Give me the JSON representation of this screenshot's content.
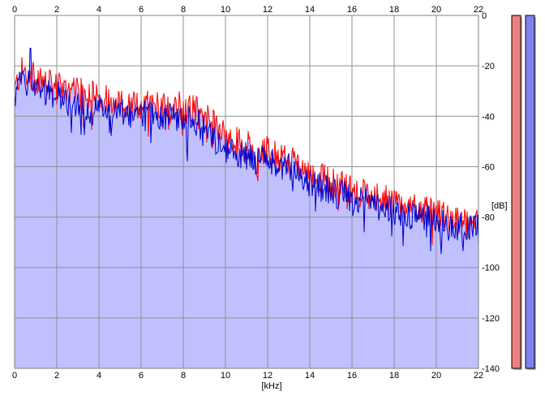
{
  "chart_data": {
    "type": "area",
    "xlabel": "[kHz]",
    "ylabel": "[dB]",
    "xlim": [
      0,
      22
    ],
    "ylim": [
      -140,
      0
    ],
    "x_ticks": [
      0,
      2,
      4,
      6,
      8,
      10,
      12,
      14,
      16,
      18,
      20,
      22
    ],
    "x_tick_labels": [
      "0",
      "2",
      "4",
      "6",
      "8",
      "10",
      "12",
      "14",
      "16",
      "18",
      "20",
      "22"
    ],
    "y_ticks": [
      0,
      -20,
      -40,
      -60,
      -80,
      -100,
      -120,
      -140
    ],
    "y_tick_labels": [
      "0",
      "-20",
      "-40",
      "-60",
      "-80",
      "-100",
      "-120",
      "-140"
    ],
    "grid": true,
    "colors": {
      "red": "#ff0000",
      "blue": "#0000cc",
      "fill": "#c0c0ff",
      "meter_red": "#f08080",
      "meter_blue": "#8080f0"
    },
    "envelope": {
      "x": [
        0,
        0.3,
        0.8,
        1.5,
        2.5,
        3.5,
        4.5,
        5.5,
        6.5,
        7.5,
        8.5,
        9.5,
        10,
        11,
        12,
        13,
        14,
        15,
        16,
        17,
        18,
        19,
        20,
        21,
        22
      ],
      "red": [
        -30,
        -22,
        -24,
        -27,
        -30,
        -31,
        -33,
        -36,
        -35,
        -35,
        -37,
        -43,
        -48,
        -51,
        -54,
        -57,
        -63,
        -66,
        -69,
        -72,
        -74,
        -77,
        -78,
        -82,
        -83
      ],
      "blue": [
        -33,
        -26,
        -26,
        -30,
        -33,
        -37,
        -38,
        -40,
        -39,
        -40,
        -42,
        -47,
        -53,
        -56,
        -58,
        -60,
        -66,
        -70,
        -72,
        -75,
        -77,
        -79,
        -81,
        -84,
        -85
      ]
    },
    "series": [
      {
        "color": "#ff0000"
      },
      {
        "color": "#0000cc"
      }
    ],
    "level_meters": [
      {
        "color": "#f08080",
        "level": 1.0
      },
      {
        "color": "#8080f0",
        "level": 1.0
      }
    ]
  }
}
